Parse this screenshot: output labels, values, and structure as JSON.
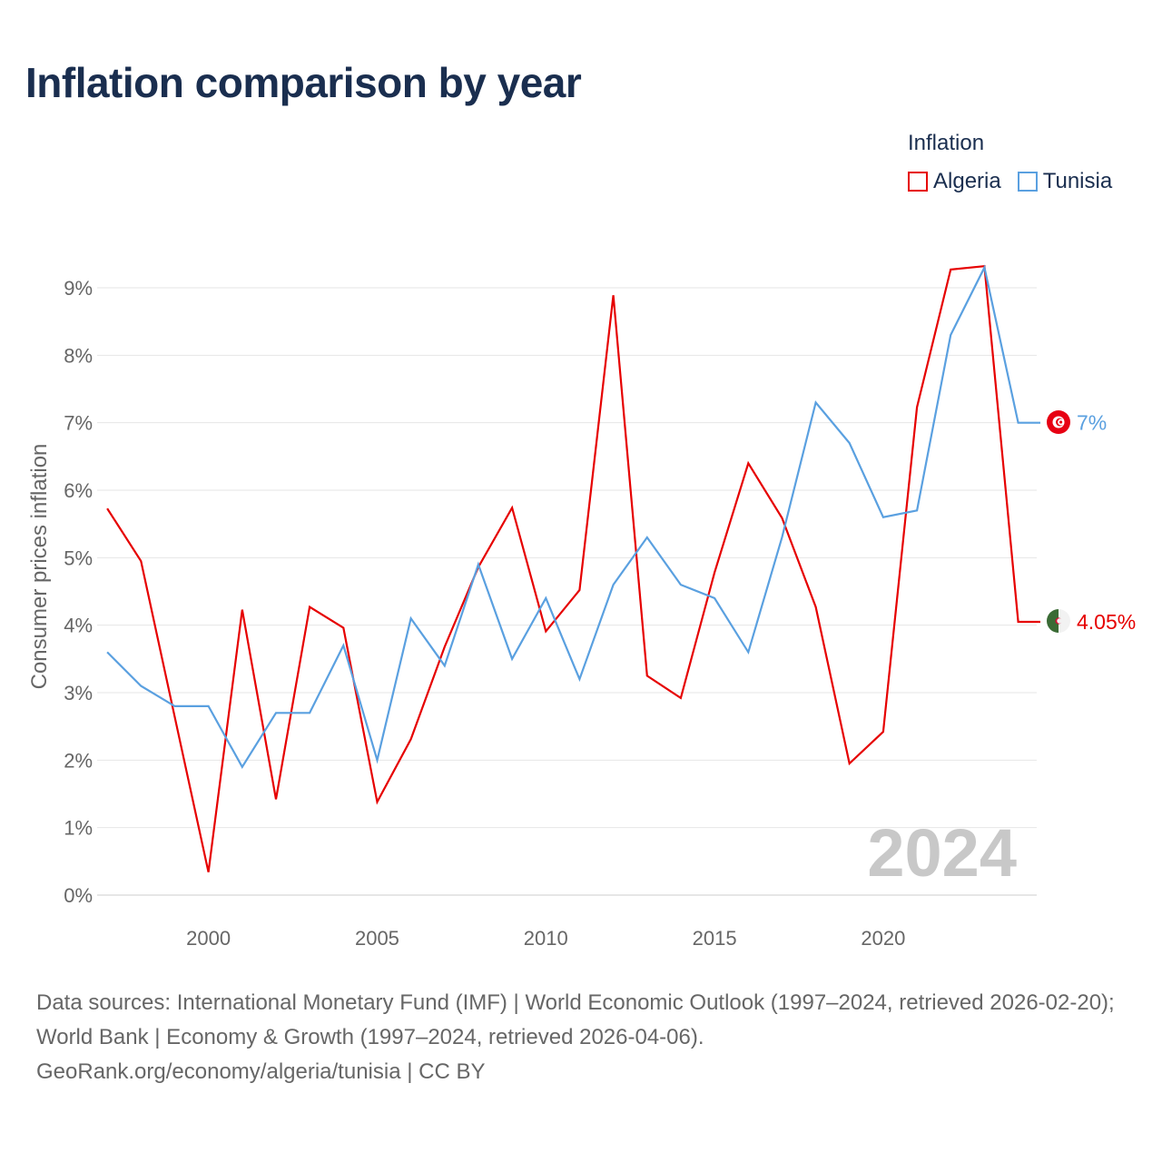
{
  "title": "Inflation comparison by year",
  "legend": {
    "title": "Inflation",
    "items": [
      {
        "label": "Algeria",
        "color": "#e60000"
      },
      {
        "label": "Tunisia",
        "color": "#5aa0e0"
      }
    ]
  },
  "chart_data": {
    "type": "line",
    "title": "Inflation comparison by year",
    "ylabel": "Consumer prices inflation",
    "xlabel": "",
    "x": [
      1997,
      1998,
      1999,
      2000,
      2001,
      2002,
      2003,
      2004,
      2005,
      2006,
      2007,
      2008,
      2009,
      2010,
      2011,
      2012,
      2013,
      2014,
      2015,
      2016,
      2017,
      2018,
      2019,
      2020,
      2021,
      2022,
      2023,
      2024
    ],
    "xlim": [
      1996.7,
      2024.55
    ],
    "ylim": [
      0,
      9.6
    ],
    "yticks": [
      0,
      1,
      2,
      3,
      4,
      5,
      6,
      7,
      8,
      9
    ],
    "ytick_labels": [
      "0%",
      "1%",
      "2%",
      "3%",
      "4%",
      "5%",
      "6%",
      "7%",
      "8%",
      "9%"
    ],
    "xticks": [
      2000,
      2005,
      2010,
      2015,
      2020
    ],
    "xtick_labels": [
      "2000",
      "2005",
      "2010",
      "2015",
      "2020"
    ],
    "grid": true,
    "watermark": "2024",
    "series": [
      {
        "name": "Algeria",
        "color": "#e60000",
        "values": [
          5.73,
          4.95,
          2.64,
          0.34,
          4.23,
          1.42,
          4.27,
          3.96,
          1.38,
          2.31,
          3.68,
          4.86,
          5.74,
          3.91,
          4.52,
          8.89,
          3.25,
          2.92,
          4.78,
          6.4,
          5.59,
          4.27,
          1.95,
          2.42,
          7.23,
          9.27,
          9.32,
          4.05
        ],
        "end_label": "4.05%"
      },
      {
        "name": "Tunisia",
        "color": "#5aa0e0",
        "values": [
          3.6,
          3.1,
          2.8,
          2.8,
          1.9,
          2.7,
          2.7,
          3.7,
          2.0,
          4.1,
          3.4,
          4.9,
          3.5,
          4.4,
          3.2,
          4.6,
          5.3,
          4.6,
          4.4,
          3.6,
          5.3,
          7.3,
          6.7,
          5.6,
          5.7,
          8.3,
          9.3,
          7.0
        ],
        "end_label": "7%"
      }
    ]
  },
  "footer": {
    "sources": "Data sources: International Monetary Fund (IMF) | World Economic Outlook (1997–2024, retrieved 2026-02-20); World Bank | Economy & Growth (1997–2024, retrieved 2026-04-06).",
    "link": "GeoRank.org/economy/algeria/tunisia | CC BY"
  }
}
